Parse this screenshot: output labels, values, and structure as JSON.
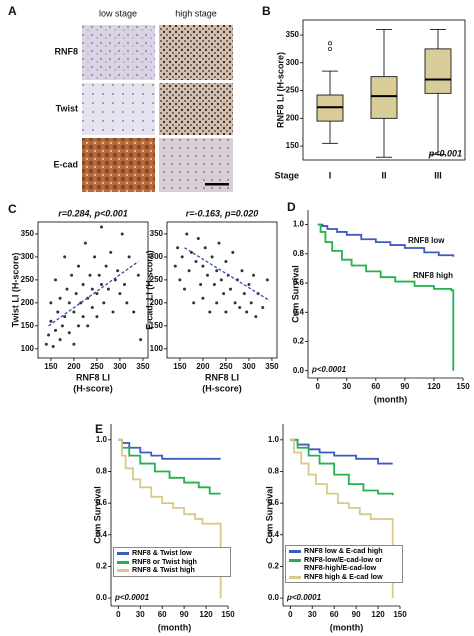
{
  "panel_labels": [
    "A",
    "B",
    "C",
    "D",
    "E"
  ],
  "panel_a": {
    "column_labels": [
      "low stage",
      "high stage"
    ],
    "row_labels": [
      "RNF8",
      "Twist",
      "E-cad"
    ]
  },
  "chart_data": [
    {
      "type": "box",
      "y_label": "RNF8 LI (H-score)",
      "x_label": "Stage",
      "annotation": "p<0.001",
      "categories": [
        "I",
        "II",
        "III"
      ],
      "color": "#d8cc98",
      "boxes": [
        {
          "min": 155,
          "q1": 195,
          "median": 220,
          "q3": 242,
          "max": 285,
          "outliers": [
            325,
            335
          ]
        },
        {
          "min": 130,
          "q1": 200,
          "median": 240,
          "q3": 275,
          "max": 360,
          "outliers": []
        },
        {
          "min": 135,
          "q1": 245,
          "median": 270,
          "q3": 325,
          "max": 360,
          "outliers": []
        }
      ],
      "ylim": [
        125,
        377
      ],
      "yticks": [
        150,
        200,
        250,
        300,
        350
      ]
    },
    {
      "type": "scatter",
      "annotation": "r=0.284, p<0.001",
      "y_label": "Twist LI (H-score)",
      "x_label": [
        "RNF8 LI",
        "(H-score)"
      ],
      "color": "#333333",
      "x": [
        140,
        145,
        150,
        150,
        155,
        160,
        160,
        165,
        170,
        170,
        175,
        180,
        180,
        185,
        190,
        190,
        195,
        200,
        200,
        205,
        210,
        210,
        215,
        220,
        220,
        225,
        230,
        230,
        235,
        240,
        240,
        245,
        250,
        250,
        255,
        260,
        260,
        265,
        270,
        275,
        280,
        285,
        290,
        295,
        300,
        305,
        310,
        315,
        320,
        330,
        340,
        345
      ],
      "values": [
        110,
        130,
        160,
        200,
        105,
        140,
        250,
        180,
        120,
        210,
        150,
        300,
        170,
        230,
        135,
        200,
        260,
        110,
        180,
        220,
        150,
        280,
        200,
        240,
        170,
        330,
        210,
        150,
        260,
        190,
        230,
        300,
        220,
        170,
        260,
        240,
        365,
        200,
        280,
        230,
        310,
        180,
        250,
        270,
        220,
        350,
        240,
        200,
        300,
        180,
        260,
        120
      ],
      "fit": {
        "x": [
          145,
          340
        ],
        "values": [
          150,
          290
        ],
        "color": "#3050a0"
      },
      "xlim": [
        122,
        361
      ],
      "ylim": [
        80,
        376
      ],
      "xticks": [
        150,
        200,
        250,
        300,
        350
      ],
      "yticks": [
        100,
        150,
        200,
        250,
        300,
        350
      ]
    },
    {
      "type": "scatter",
      "annotation": "r=-0.163, p=0.020",
      "y_label": "E-cad. LI (H-score)",
      "x_label": [
        "RNF8 LI",
        "(H-score)"
      ],
      "color": "#333333",
      "x": [
        140,
        145,
        150,
        155,
        160,
        165,
        170,
        175,
        180,
        185,
        190,
        195,
        200,
        200,
        205,
        210,
        215,
        220,
        225,
        230,
        230,
        235,
        240,
        245,
        250,
        250,
        255,
        260,
        265,
        270,
        275,
        280,
        285,
        290,
        295,
        300,
        305,
        310,
        315,
        320,
        330,
        340
      ],
      "values": [
        280,
        320,
        250,
        300,
        230,
        350,
        270,
        310,
        200,
        290,
        340,
        240,
        280,
        210,
        320,
        260,
        180,
        300,
        240,
        270,
        200,
        330,
        250,
        220,
        290,
        180,
        260,
        230,
        310,
        200,
        250,
        190,
        270,
        220,
        180,
        240,
        200,
        260,
        170,
        220,
        190,
        250
      ],
      "fit": {
        "x": [
          160,
          345
        ],
        "values": [
          320,
          205
        ],
        "color": "#3050a0"
      },
      "xlim": [
        122,
        361
      ],
      "ylim": [
        80,
        376
      ],
      "xticks": [
        150,
        200,
        250,
        300,
        350
      ],
      "yticks": [
        100,
        150,
        200,
        250,
        300,
        350
      ]
    },
    {
      "type": "line",
      "step": true,
      "legend": "inline",
      "y_label": "Cum Survival",
      "x_label": "(month)",
      "annotation": "p<0.0001",
      "series": [
        {
          "name": "RNF8 low",
          "color": "#3a5bbf",
          "x": [
            0,
            5,
            10,
            20,
            30,
            45,
            60,
            75,
            90,
            110,
            125,
            140
          ],
          "values": [
            1,
            0.99,
            0.97,
            0.95,
            0.93,
            0.9,
            0.88,
            0.86,
            0.84,
            0.81,
            0.79,
            0.78
          ]
        },
        {
          "name": "RNF8 high",
          "color": "#22b14c",
          "x": [
            0,
            3,
            8,
            15,
            25,
            35,
            50,
            65,
            80,
            100,
            120,
            138,
            140
          ],
          "values": [
            1,
            0.95,
            0.88,
            0.82,
            0.76,
            0.72,
            0.68,
            0.64,
            0.61,
            0.58,
            0.56,
            0.55,
            0
          ]
        }
      ],
      "xlim": [
        -10,
        150
      ],
      "ylim": [
        -0.05,
        1.1
      ],
      "xticks": [
        0,
        30,
        60,
        90,
        120,
        150
      ],
      "yticks": [
        {
          "value": 0,
          "label": "0.0"
        },
        {
          "value": 0.2,
          "label": "0.2"
        },
        {
          "value": 0.4,
          "label": "0.4"
        },
        {
          "value": 0.6,
          "label": "0.6"
        },
        {
          "value": 0.8,
          "label": "0.8"
        },
        {
          "value": 1,
          "label": "1.0"
        }
      ]
    },
    {
      "type": "line",
      "step": true,
      "legend": "lower left",
      "y_label": "Cum Survival",
      "x_label": "(month)",
      "annotation": "p<0.0001",
      "series": [
        {
          "name": "RNF8 & Twist low",
          "color": "#3a5bbf",
          "x": [
            0,
            5,
            15,
            30,
            45,
            60,
            140
          ],
          "values": [
            1,
            0.98,
            0.95,
            0.92,
            0.9,
            0.88,
            0.88
          ]
        },
        {
          "name": "RNF8 or Twist high",
          "color": "#22b14c",
          "x": [
            0,
            5,
            15,
            30,
            50,
            70,
            90,
            110,
            125,
            140
          ],
          "values": [
            1,
            0.95,
            0.9,
            0.85,
            0.8,
            0.76,
            0.73,
            0.7,
            0.66,
            0.66
          ]
        },
        {
          "name": "RNF8 & Twist high",
          "color": "#d8c98a",
          "x": [
            0,
            5,
            10,
            20,
            30,
            45,
            60,
            75,
            90,
            105,
            115,
            140
          ],
          "values": [
            1,
            0.9,
            0.82,
            0.75,
            0.7,
            0.64,
            0.6,
            0.57,
            0.53,
            0.5,
            0.47,
            0
          ]
        }
      ],
      "xlim": [
        -10,
        150
      ],
      "ylim": [
        -0.05,
        1.1
      ],
      "xticks": [
        0,
        30,
        60,
        90,
        120,
        150
      ],
      "yticks": [
        {
          "value": 0,
          "label": "0.0"
        },
        {
          "value": 0.2,
          "label": "0.2"
        },
        {
          "value": 0.4,
          "label": "0.4"
        },
        {
          "value": 0.6,
          "label": "0.6"
        },
        {
          "value": 0.8,
          "label": "0.8"
        },
        {
          "value": 1,
          "label": "1.0"
        }
      ]
    },
    {
      "type": "line",
      "step": true,
      "legend": "lower left",
      "y_label": "Cum Survival",
      "x_label": "(month)",
      "annotation": "p<0.0001",
      "series": [
        {
          "name": "RNF8 low & E-cad high",
          "color": "#3a5bbf",
          "x": [
            0,
            10,
            25,
            40,
            60,
            90,
            120,
            140
          ],
          "values": [
            1,
            0.97,
            0.94,
            0.92,
            0.9,
            0.88,
            0.85,
            0.85
          ]
        },
        {
          "name": "RNF8-low/E-cad-low or RNF8-high/E-cad-low",
          "color": "#22b14c",
          "x": [
            0,
            10,
            25,
            40,
            60,
            80,
            100,
            120,
            140
          ],
          "values": [
            1,
            0.95,
            0.9,
            0.85,
            0.78,
            0.72,
            0.68,
            0.66,
            0.65
          ]
        },
        {
          "name": "RNF8 high & E-cad low",
          "color": "#d8c98a",
          "x": [
            0,
            5,
            15,
            25,
            35,
            50,
            65,
            80,
            95,
            110,
            140
          ],
          "values": [
            1,
            0.92,
            0.85,
            0.78,
            0.72,
            0.66,
            0.6,
            0.57,
            0.53,
            0.5,
            0
          ]
        }
      ],
      "xlim": [
        -10,
        150
      ],
      "ylim": [
        -0.05,
        1.1
      ],
      "xticks": [
        0,
        30,
        60,
        90,
        120,
        150
      ],
      "yticks": [
        {
          "value": 0,
          "label": "0.0"
        },
        {
          "value": 0.2,
          "label": "0.2"
        },
        {
          "value": 0.4,
          "label": "0.4"
        },
        {
          "value": 0.6,
          "label": "0.6"
        },
        {
          "value": 0.8,
          "label": "0.8"
        },
        {
          "value": 1,
          "label": "1.0"
        }
      ]
    }
  ]
}
